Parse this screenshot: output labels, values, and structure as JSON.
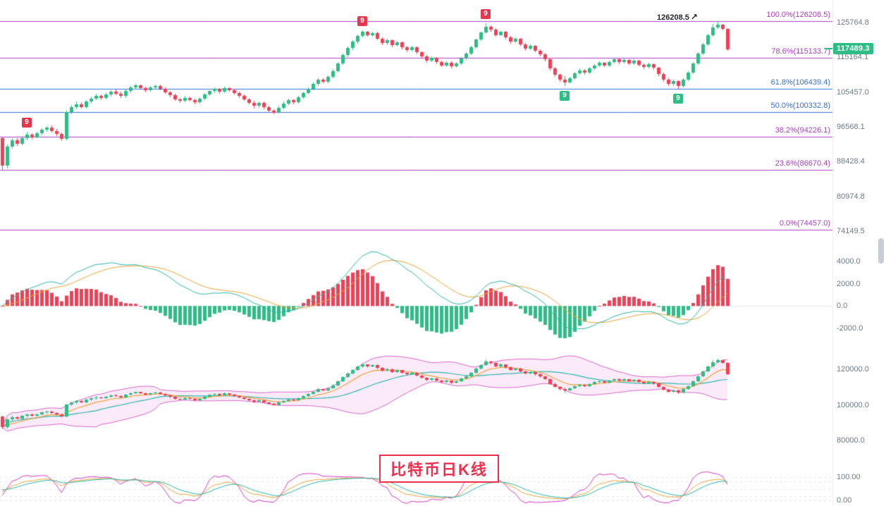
{
  "colors": {
    "up": "#2ebd85",
    "down": "#ef4056",
    "macd_pos": "#ef4056",
    "macd_neg": "#2ebd85",
    "dif": "#2ab6a9",
    "dea": "#f0a33c",
    "boll_band": "rgba(222,90,200,0.12)",
    "boll_edge": "#d668c8",
    "boll_mid": "#2ab6a9",
    "boll_ma": "#f0a33c",
    "kdj_k": "#f0a33c",
    "kdj_d": "#2ab6a9",
    "kdj_j": "#d63bc0",
    "axis_text": "#707a8a",
    "badge_sell": "#e5374e",
    "badge_buy": "#2ebd85",
    "title_red": "#ee2f4e"
  },
  "chart_data": {
    "type": "candlestick",
    "symbol_title": "比特币日K线",
    "current_price": 117489.3,
    "current_price_label": "117489.3",
    "high_annotation": {
      "text": "126208.5",
      "arrow": "↗",
      "index": 145
    },
    "legend_position": "none",
    "grid": "minimal",
    "fib_levels": [
      {
        "label": "100.0%(126208.5)",
        "value": 126208.5,
        "color": "#ab3ec2"
      },
      {
        "label": "78.6%(115133.7)",
        "value": 115133.7,
        "color": "#ab3ec2"
      },
      {
        "label": "61.8%(106439.4)",
        "value": 106439.4,
        "color": "#3a6fd8"
      },
      {
        "label": "50.0%(100332.8)",
        "value": 100332.8,
        "color": "#3a6fd8"
      },
      {
        "label": "38.2%(94226.1)",
        "value": 94226.1,
        "color": "#ab3ec2"
      },
      {
        "label": "23.6%(86670.4)",
        "value": 86670.4,
        "color": "#ab3ec2"
      },
      {
        "label": "0.0%(74457.0)",
        "value": 74457.0,
        "color": "#ab3ec2"
      }
    ],
    "panels": [
      {
        "name": "price",
        "scale": "log",
        "y_range": [
          71550,
          132700
        ],
        "ticks": [
          {
            "v": 125764.8,
            "t": "125764.8"
          },
          {
            "v": 115164.1,
            "t": "115164.1"
          },
          {
            "v": 105457.0,
            "t": "105457.0"
          },
          {
            "v": 96568.1,
            "t": "96568.1"
          },
          {
            "v": 88428.4,
            "t": "88428.4"
          },
          {
            "v": 80974.8,
            "t": "80974.8"
          },
          {
            "v": 74149.5,
            "t": "74149.5"
          }
        ]
      },
      {
        "name": "macd",
        "scale": "linear",
        "y_range": [
          -2900,
          5200
        ],
        "ticks": [
          {
            "v": 4000,
            "t": "4000.0"
          },
          {
            "v": 2000,
            "t": "2000.0"
          },
          {
            "v": 0,
            "t": "0.0"
          },
          {
            "v": -2000,
            "t": "-2000.0"
          }
        ]
      },
      {
        "name": "boll",
        "scale": "linear",
        "y_range": [
          67900,
          132800
        ],
        "ticks": [
          {
            "v": 120000,
            "t": "120000.0"
          },
          {
            "v": 100000,
            "t": "100000.0"
          },
          {
            "v": 80000,
            "t": "80000.0"
          }
        ]
      },
      {
        "name": "oscillator",
        "scale": "linear",
        "y_range": [
          -17,
          150
        ],
        "ticks": [
          {
            "v": 100,
            "t": "100.00"
          },
          {
            "v": 0,
            "t": "0.00"
          }
        ]
      }
    ],
    "markers": [
      {
        "i": 5,
        "label": "9",
        "type": "sell"
      },
      {
        "i": 73,
        "label": "9",
        "type": "sell"
      },
      {
        "i": 98,
        "label": "9",
        "type": "sell"
      },
      {
        "i": 114,
        "label": "9",
        "type": "buy"
      },
      {
        "i": 137,
        "label": "9",
        "type": "buy"
      }
    ],
    "ohlc": [
      [
        93800,
        94200,
        86500,
        87600
      ],
      [
        87600,
        92300,
        86900,
        91900
      ],
      [
        91900,
        93900,
        91300,
        93300
      ],
      [
        93300,
        93800,
        92000,
        92600
      ],
      [
        92600,
        94400,
        92200,
        93900
      ],
      [
        93900,
        95300,
        93300,
        94700
      ],
      [
        94700,
        95100,
        93600,
        94100
      ],
      [
        94100,
        95400,
        93800,
        95000
      ],
      [
        95000,
        96300,
        94600,
        95900
      ],
      [
        95900,
        96800,
        95300,
        96400
      ],
      [
        96400,
        96900,
        95200,
        95600
      ],
      [
        95600,
        96100,
        94400,
        94800
      ],
      [
        94800,
        95200,
        93200,
        93700
      ],
      [
        93700,
        100600,
        93400,
        100200
      ],
      [
        100200,
        102000,
        99700,
        101500
      ],
      [
        101500,
        102900,
        100900,
        102300
      ],
      [
        102300,
        102800,
        101100,
        101600
      ],
      [
        101600,
        103400,
        101200,
        103000
      ],
      [
        103000,
        104300,
        102500,
        103800
      ],
      [
        103800,
        105000,
        103300,
        104500
      ],
      [
        104500,
        104900,
        103400,
        103900
      ],
      [
        103900,
        105200,
        103500,
        104800
      ],
      [
        104800,
        106000,
        104300,
        105600
      ],
      [
        105600,
        106100,
        104700,
        105100
      ],
      [
        105100,
        105500,
        103900,
        104400
      ],
      [
        104400,
        106200,
        104000,
        105800
      ],
      [
        105800,
        107100,
        105300,
        106700
      ],
      [
        106700,
        107600,
        106200,
        107300
      ],
      [
        107300,
        107500,
        106100,
        106600
      ],
      [
        106600,
        107000,
        105400,
        105900
      ],
      [
        105900,
        107100,
        105500,
        106800
      ],
      [
        106800,
        107500,
        106300,
        107200
      ],
      [
        107200,
        107400,
        105900,
        106300
      ],
      [
        106300,
        106700,
        105000,
        105400
      ],
      [
        105400,
        105800,
        104100,
        104600
      ],
      [
        104600,
        105000,
        103200,
        103600
      ],
      [
        103600,
        104000,
        102600,
        103100
      ],
      [
        103100,
        104400,
        102800,
        104000
      ],
      [
        104000,
        104300,
        103000,
        103400
      ],
      [
        103400,
        103800,
        102300,
        102800
      ],
      [
        102800,
        104100,
        102500,
        103700
      ],
      [
        103700,
        105200,
        103300,
        104900
      ],
      [
        104900,
        106000,
        104400,
        105700
      ],
      [
        105700,
        106700,
        105200,
        106300
      ],
      [
        106300,
        106600,
        105100,
        105600
      ],
      [
        105600,
        106900,
        105200,
        106500
      ],
      [
        106500,
        106800,
        105500,
        106000
      ],
      [
        106000,
        106400,
        104800,
        105200
      ],
      [
        105200,
        105600,
        104000,
        104500
      ],
      [
        104500,
        104900,
        103100,
        103600
      ],
      [
        103600,
        104000,
        102200,
        102700
      ],
      [
        102700,
        103100,
        101200,
        101800
      ],
      [
        101800,
        103000,
        101400,
        102600
      ],
      [
        102600,
        102900,
        101000,
        101500
      ],
      [
        101500,
        101900,
        100200,
        100700
      ],
      [
        100700,
        101000,
        99800,
        100100
      ],
      [
        100100,
        101800,
        99900,
        101400
      ],
      [
        101400,
        102900,
        101000,
        102500
      ],
      [
        102500,
        103700,
        102100,
        103300
      ],
      [
        103300,
        103600,
        102300,
        102800
      ],
      [
        102800,
        104500,
        102500,
        104100
      ],
      [
        104100,
        105600,
        103700,
        105200
      ],
      [
        105200,
        106800,
        104800,
        106400
      ],
      [
        106400,
        108000,
        106000,
        107600
      ],
      [
        107600,
        109300,
        107200,
        108900
      ],
      [
        108900,
        109200,
        107800,
        108300
      ],
      [
        108300,
        110000,
        107900,
        109600
      ],
      [
        109600,
        111700,
        109300,
        111200
      ],
      [
        111200,
        113900,
        110800,
        113400
      ],
      [
        113400,
        116300,
        113000,
        115800
      ],
      [
        115800,
        118400,
        115300,
        117900
      ],
      [
        117900,
        120300,
        117400,
        119800
      ],
      [
        119800,
        122100,
        119300,
        121600
      ],
      [
        121600,
        123400,
        121100,
        122800
      ],
      [
        122800,
        123100,
        121300,
        121900
      ],
      [
        121900,
        123000,
        121400,
        122500
      ],
      [
        122500,
        122800,
        120200,
        120800
      ],
      [
        120800,
        121200,
        118800,
        119400
      ],
      [
        119400,
        120800,
        118900,
        120300
      ],
      [
        120300,
        120600,
        118100,
        118700
      ],
      [
        118700,
        120100,
        118300,
        119600
      ],
      [
        119600,
        119900,
        117600,
        118200
      ],
      [
        118200,
        118600,
        116700,
        117300
      ],
      [
        117300,
        118600,
        116900,
        118100
      ],
      [
        118100,
        118400,
        116000,
        116600
      ],
      [
        116600,
        117000,
        114800,
        115400
      ],
      [
        115400,
        115800,
        113600,
        114200
      ],
      [
        114200,
        115400,
        113800,
        115000
      ],
      [
        115000,
        115300,
        113200,
        113800
      ],
      [
        113800,
        114200,
        112300,
        112900
      ],
      [
        112900,
        114100,
        112500,
        113700
      ],
      [
        113700,
        114000,
        112000,
        112600
      ],
      [
        112600,
        113900,
        112200,
        113500
      ],
      [
        113500,
        115200,
        113100,
        114800
      ],
      [
        114800,
        116700,
        114400,
        116300
      ],
      [
        116300,
        118600,
        115900,
        118200
      ],
      [
        118200,
        120800,
        117800,
        120400
      ],
      [
        120400,
        123000,
        120000,
        122600
      ],
      [
        122600,
        125600,
        122200,
        124500
      ],
      [
        124500,
        124900,
        123000,
        123600
      ],
      [
        123600,
        124000,
        121300,
        121900
      ],
      [
        121900,
        123200,
        121500,
        122800
      ],
      [
        122800,
        123100,
        120600,
        121200
      ],
      [
        121200,
        121600,
        119200,
        119800
      ],
      [
        119800,
        121100,
        119400,
        120700
      ],
      [
        120700,
        121000,
        118500,
        119100
      ],
      [
        119100,
        119500,
        117200,
        117800
      ],
      [
        117800,
        119000,
        117400,
        118600
      ],
      [
        118600,
        118900,
        116600,
        117200
      ],
      [
        117200,
        117600,
        115400,
        116000
      ],
      [
        116000,
        116400,
        114100,
        114700
      ],
      [
        114700,
        115100,
        111400,
        112000
      ],
      [
        112000,
        112500,
        109700,
        110300
      ],
      [
        110300,
        110700,
        108300,
        108900
      ],
      [
        108900,
        109800,
        107200,
        108100
      ],
      [
        108100,
        109700,
        107800,
        109300
      ],
      [
        109300,
        111000,
        108900,
        110600
      ],
      [
        110600,
        111900,
        110200,
        111500
      ],
      [
        111500,
        111800,
        110300,
        110800
      ],
      [
        110800,
        112400,
        110400,
        112000
      ],
      [
        112000,
        113300,
        111600,
        112900
      ],
      [
        112900,
        114000,
        112500,
        113600
      ],
      [
        113600,
        113900,
        112300,
        112800
      ],
      [
        112800,
        114300,
        112400,
        113900
      ],
      [
        113900,
        115000,
        113500,
        114600
      ],
      [
        114600,
        114900,
        113300,
        113800
      ],
      [
        113800,
        114800,
        113400,
        114400
      ],
      [
        114400,
        114700,
        113000,
        113500
      ],
      [
        113500,
        114600,
        113100,
        114200
      ],
      [
        114200,
        114500,
        112600,
        113100
      ],
      [
        113100,
        113500,
        111800,
        112300
      ],
      [
        112300,
        113600,
        111900,
        113200
      ],
      [
        113200,
        113500,
        111600,
        112100
      ],
      [
        112100,
        112500,
        109900,
        110400
      ],
      [
        110400,
        110800,
        108300,
        108800
      ],
      [
        108800,
        109200,
        107100,
        107600
      ],
      [
        107600,
        108800,
        107200,
        108400
      ],
      [
        108400,
        108700,
        106300,
        107100
      ],
      [
        107100,
        109300,
        106800,
        108900
      ],
      [
        108900,
        111200,
        108500,
        110800
      ],
      [
        110800,
        113800,
        110400,
        113400
      ],
      [
        113400,
        116600,
        113000,
        116200
      ],
      [
        116200,
        119400,
        115800,
        119000
      ],
      [
        119000,
        122200,
        118600,
        121800
      ],
      [
        121800,
        125400,
        121400,
        124200
      ],
      [
        124200,
        126208.5,
        123800,
        125100
      ],
      [
        125100,
        125400,
        123300,
        123800
      ],
      [
        123800,
        124100,
        117100,
        117489.3
      ]
    ]
  }
}
